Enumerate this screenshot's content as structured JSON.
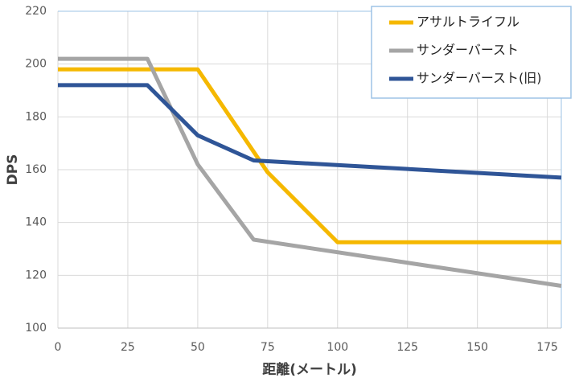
{
  "chart_data": {
    "type": "line",
    "x_label": "距離(メートル)",
    "y_label": "DPS",
    "xlim": [
      0,
      180
    ],
    "xticks": [
      0,
      25,
      50,
      75,
      100,
      125,
      150,
      175
    ],
    "ylim": [
      100,
      220
    ],
    "yticks": [
      100,
      120,
      140,
      160,
      180,
      200,
      220
    ],
    "grid": true,
    "legend": "upper right",
    "series": [
      {
        "name": "アサルトライフル",
        "color": "#f5b800",
        "x": [
          0,
          50,
          75,
          100,
          180
        ],
        "values": [
          198,
          198,
          159,
          132.5,
          132.5
        ]
      },
      {
        "name": "サンダーバースト",
        "color": "#a5a5a5",
        "x": [
          0,
          32,
          50,
          70,
          180
        ],
        "values": [
          202,
          202,
          162,
          133.5,
          116
        ]
      },
      {
        "name": "サンダーバースト(旧)",
        "color": "#2f5597",
        "x": [
          0,
          32,
          50,
          70,
          180
        ],
        "values": [
          192,
          192,
          173,
          163.5,
          157
        ]
      }
    ]
  }
}
